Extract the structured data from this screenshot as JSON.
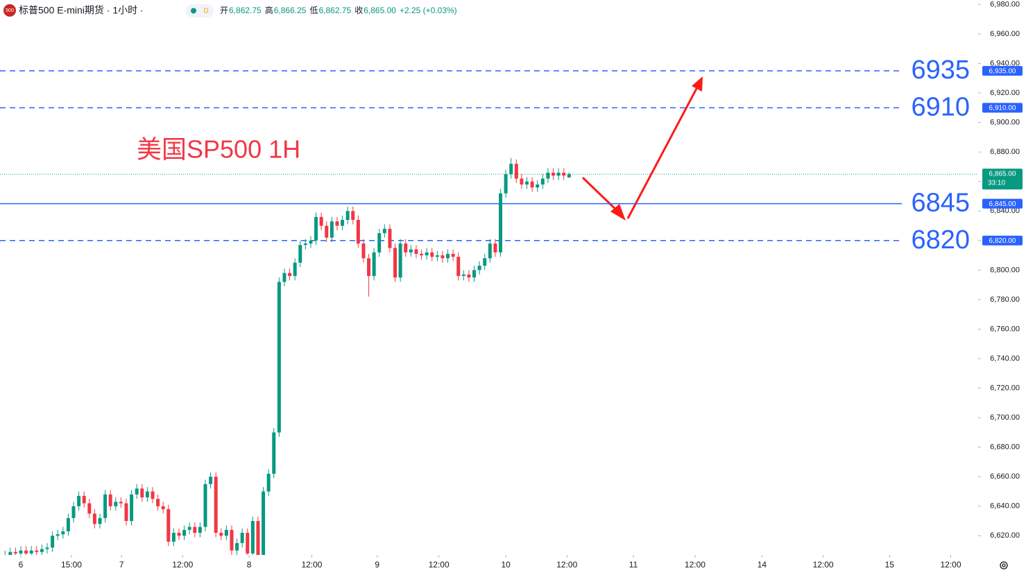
{
  "header": {
    "icon": "500",
    "symbol": "标普500 E-mini期货 · 1小时 ·",
    "badge": "D",
    "ohlc": [
      {
        "label": "开",
        "value": "6,862.75"
      },
      {
        "label": "高",
        "value": "6,866.25"
      },
      {
        "label": "低",
        "value": "6,862.75"
      },
      {
        "label": "收",
        "value": "6,865.00"
      }
    ],
    "change": "+2.25 (+0.03%)"
  },
  "chart_data": {
    "type": "candlestick",
    "annotation": "美国SP500 1H",
    "up_color": "#089981",
    "down_color": "#f23645",
    "x": [
      -3,
      -2,
      -1,
      0,
      1,
      2,
      3,
      4,
      5,
      6,
      7,
      8,
      9,
      10,
      11,
      12,
      13,
      14,
      15,
      16,
      17,
      18,
      19,
      20,
      21,
      22,
      23,
      24,
      25,
      26,
      27,
      28,
      29,
      30,
      31,
      32,
      33,
      34,
      35,
      36,
      37,
      38,
      39,
      40,
      41,
      42,
      43,
      44,
      45,
      46,
      47,
      48,
      49,
      50,
      51,
      52,
      53,
      54,
      55,
      56,
      57,
      58,
      59,
      60,
      61,
      62,
      63,
      64,
      65,
      66,
      67,
      68,
      69,
      70,
      71,
      72,
      73,
      74,
      75,
      76,
      77,
      78,
      79,
      80,
      81,
      82,
      83,
      84,
      85,
      86,
      87,
      88,
      89,
      90,
      91,
      92,
      93,
      94,
      95,
      96,
      97,
      98,
      99,
      100,
      101,
      102,
      103,
      104
    ],
    "open": [
      6606,
      6607,
      6609,
      6608,
      6610,
      6608,
      6610,
      6609,
      6611,
      6612,
      6620,
      6621,
      6623,
      6632,
      6640,
      6647,
      6642,
      6635,
      6628,
      6632,
      6648,
      6640,
      6643,
      6642,
      6630,
      6648,
      6652,
      6646,
      6650,
      6645,
      6640,
      6638,
      6616,
      6622,
      6620,
      6624,
      6626,
      6622,
      6626,
      6655,
      6660,
      6622,
      6620,
      6624,
      6610,
      6615,
      6622,
      6608,
      6630,
      6605,
      6650,
      6662,
      6690,
      6792,
      6798,
      6796,
      6805,
      6817,
      6818,
      6820,
      6836,
      6830,
      6822,
      6833,
      6830,
      6834,
      6840,
      6834,
      6818,
      6808,
      6796,
      6812,
      6825,
      6828,
      6815,
      6795,
      6818,
      6812,
      6814,
      6811,
      6810,
      6812,
      6809,
      6810,
      6808,
      6811,
      6809,
      6796,
      6797,
      6795,
      6800,
      6803,
      6808,
      6818,
      6812,
      6852,
      6865,
      6872,
      6862,
      6858,
      6860,
      6856,
      6858,
      6862,
      6866,
      6864,
      6866,
      6862.75
    ],
    "high": [
      6610,
      6612,
      6612,
      6613,
      6613,
      6613,
      6613,
      6614,
      6615,
      6623,
      6624,
      6626,
      6635,
      6643,
      6650,
      6650,
      6645,
      6638,
      6635,
      6651,
      6651,
      6646,
      6646,
      6645,
      6651,
      6655,
      6655,
      6653,
      6653,
      6648,
      6643,
      6641,
      6625,
      6625,
      6627,
      6629,
      6629,
      6629,
      6658,
      6663,
      6663,
      6625,
      6627,
      6627,
      6618,
      6625,
      6625,
      6633,
      6633,
      6653,
      6665,
      6693,
      6795,
      6801,
      6801,
      6808,
      6820,
      6821,
      6823,
      6839,
      6839,
      6833,
      6836,
      6836,
      6837,
      6843,
      6843,
      6837,
      6821,
      6811,
      6815,
      6828,
      6831,
      6831,
      6818,
      6821,
      6821,
      6817,
      6817,
      6814,
      6815,
      6815,
      6813,
      6813,
      6814,
      6814,
      6812,
      6800,
      6800,
      6803,
      6806,
      6811,
      6821,
      6821,
      6855,
      6868,
      6876,
      6875,
      6865,
      6863,
      6863,
      6861,
      6865,
      6869,
      6869,
      6869,
      6869,
      6866.25
    ],
    "low": [
      6603,
      6604,
      6605,
      6605,
      6605,
      6605,
      6606,
      6606,
      6608,
      6609,
      6617,
      6618,
      6620,
      6629,
      6637,
      6639,
      6632,
      6625,
      6625,
      6629,
      6637,
      6637,
      6639,
      6627,
      6627,
      6645,
      6643,
      6643,
      6642,
      6637,
      6635,
      6613,
      6613,
      6617,
      6617,
      6621,
      6619,
      6619,
      6623,
      6652,
      6619,
      6617,
      6617,
      6607,
      6607,
      6612,
      6605,
      6605,
      6602,
      6602,
      6647,
      6659,
      6687,
      6789,
      6793,
      6793,
      6802,
      6814,
      6815,
      6817,
      6827,
      6819,
      6819,
      6827,
      6827,
      6831,
      6831,
      6815,
      6805,
      6782,
      6793,
      6809,
      6822,
      6812,
      6792,
      6792,
      6809,
      6809,
      6808,
      6807,
      6807,
      6806,
      6806,
      6805,
      6805,
      6806,
      6793,
      6793,
      6792,
      6792,
      6797,
      6800,
      6805,
      6809,
      6809,
      6849,
      6862,
      6859,
      6855,
      6855,
      6853,
      6853,
      6855,
      6859,
      6861,
      6861,
      6861,
      6862.75
    ],
    "close": [
      6607,
      6609,
      6608,
      6610,
      6608,
      6610,
      6609,
      6611,
      6612,
      6620,
      6621,
      6623,
      6632,
      6640,
      6647,
      6642,
      6635,
      6628,
      6632,
      6648,
      6640,
      6643,
      6642,
      6630,
      6648,
      6652,
      6646,
      6650,
      6645,
      6640,
      6638,
      6616,
      6622,
      6620,
      6624,
      6626,
      6622,
      6626,
      6655,
      6660,
      6622,
      6620,
      6624,
      6610,
      6615,
      6622,
      6608,
      6630,
      6605,
      6650,
      6662,
      6690,
      6792,
      6798,
      6796,
      6805,
      6817,
      6818,
      6820,
      6836,
      6830,
      6822,
      6833,
      6830,
      6834,
      6840,
      6834,
      6818,
      6808,
      6796,
      6812,
      6825,
      6828,
      6815,
      6795,
      6818,
      6812,
      6814,
      6811,
      6810,
      6812,
      6809,
      6810,
      6808,
      6811,
      6809,
      6796,
      6797,
      6795,
      6800,
      6803,
      6808,
      6818,
      6812,
      6852,
      6865,
      6872,
      6862,
      6858,
      6860,
      6856,
      6858,
      6862,
      6866,
      6864,
      6866,
      6864,
      6865
    ],
    "xlim": [
      -3.95,
      181.6
    ],
    "ylim": [
      6607,
      6983
    ],
    "xticks": [
      {
        "value": 0,
        "label": "6"
      },
      {
        "value": 9.6,
        "label": "15:00"
      },
      {
        "value": 19.1,
        "label": "7"
      },
      {
        "value": 30.7,
        "label": "12:00"
      },
      {
        "value": 43.3,
        "label": "8"
      },
      {
        "value": 55.2,
        "label": "12:00"
      },
      {
        "value": 67.6,
        "label": "9"
      },
      {
        "value": 79.3,
        "label": "12:00"
      },
      {
        "value": 92,
        "label": "10"
      },
      {
        "value": 103.6,
        "label": "12:00"
      },
      {
        "value": 116.2,
        "label": "11"
      },
      {
        "value": 127.9,
        "label": "12:00"
      },
      {
        "value": 140.6,
        "label": "14"
      },
      {
        "value": 152.2,
        "label": "12:00"
      },
      {
        "value": 164.8,
        "label": "15"
      },
      {
        "value": 176.4,
        "label": "12:00"
      }
    ],
    "yticks": [
      {
        "value": 6620,
        "label": "6,620.00"
      },
      {
        "value": 6640,
        "label": "6,640.00"
      },
      {
        "value": 6660,
        "label": "6,660.00"
      },
      {
        "value": 6680,
        "label": "6,680.00"
      },
      {
        "value": 6700,
        "label": "6,700.00"
      },
      {
        "value": 6720,
        "label": "6,720.00"
      },
      {
        "value": 6740,
        "label": "6,740.00"
      },
      {
        "value": 6760,
        "label": "6,760.00"
      },
      {
        "value": 6780,
        "label": "6,780.00"
      },
      {
        "value": 6800,
        "label": "6,800.00"
      },
      {
        "value": 6820,
        "label": "6,820.00"
      },
      {
        "value": 6840,
        "label": "6,840.00"
      },
      {
        "value": 6860,
        "label": "6,860.00"
      },
      {
        "value": 6880,
        "label": "6,880.00"
      },
      {
        "value": 6900,
        "label": "6,900.00"
      },
      {
        "value": 6920,
        "label": "6,920.00"
      },
      {
        "value": 6940,
        "label": "6,940.00"
      },
      {
        "value": 6960,
        "label": "6,960.00"
      },
      {
        "value": 6980,
        "label": "6,980.00"
      }
    ],
    "levels": [
      {
        "value": 6935,
        "badge": "6,935.00",
        "dashed": true
      },
      {
        "value": 6910,
        "badge": "6,910.00",
        "dashed": true
      },
      {
        "value": 6845,
        "badge": "6,845.00",
        "dashed": false
      },
      {
        "value": 6820,
        "badge": "6,820.00",
        "dashed": true
      }
    ],
    "level_color": "#2962ff",
    "last_price": {
      "value": 6865,
      "label": "6,865.00",
      "countdown": "33:10"
    }
  }
}
